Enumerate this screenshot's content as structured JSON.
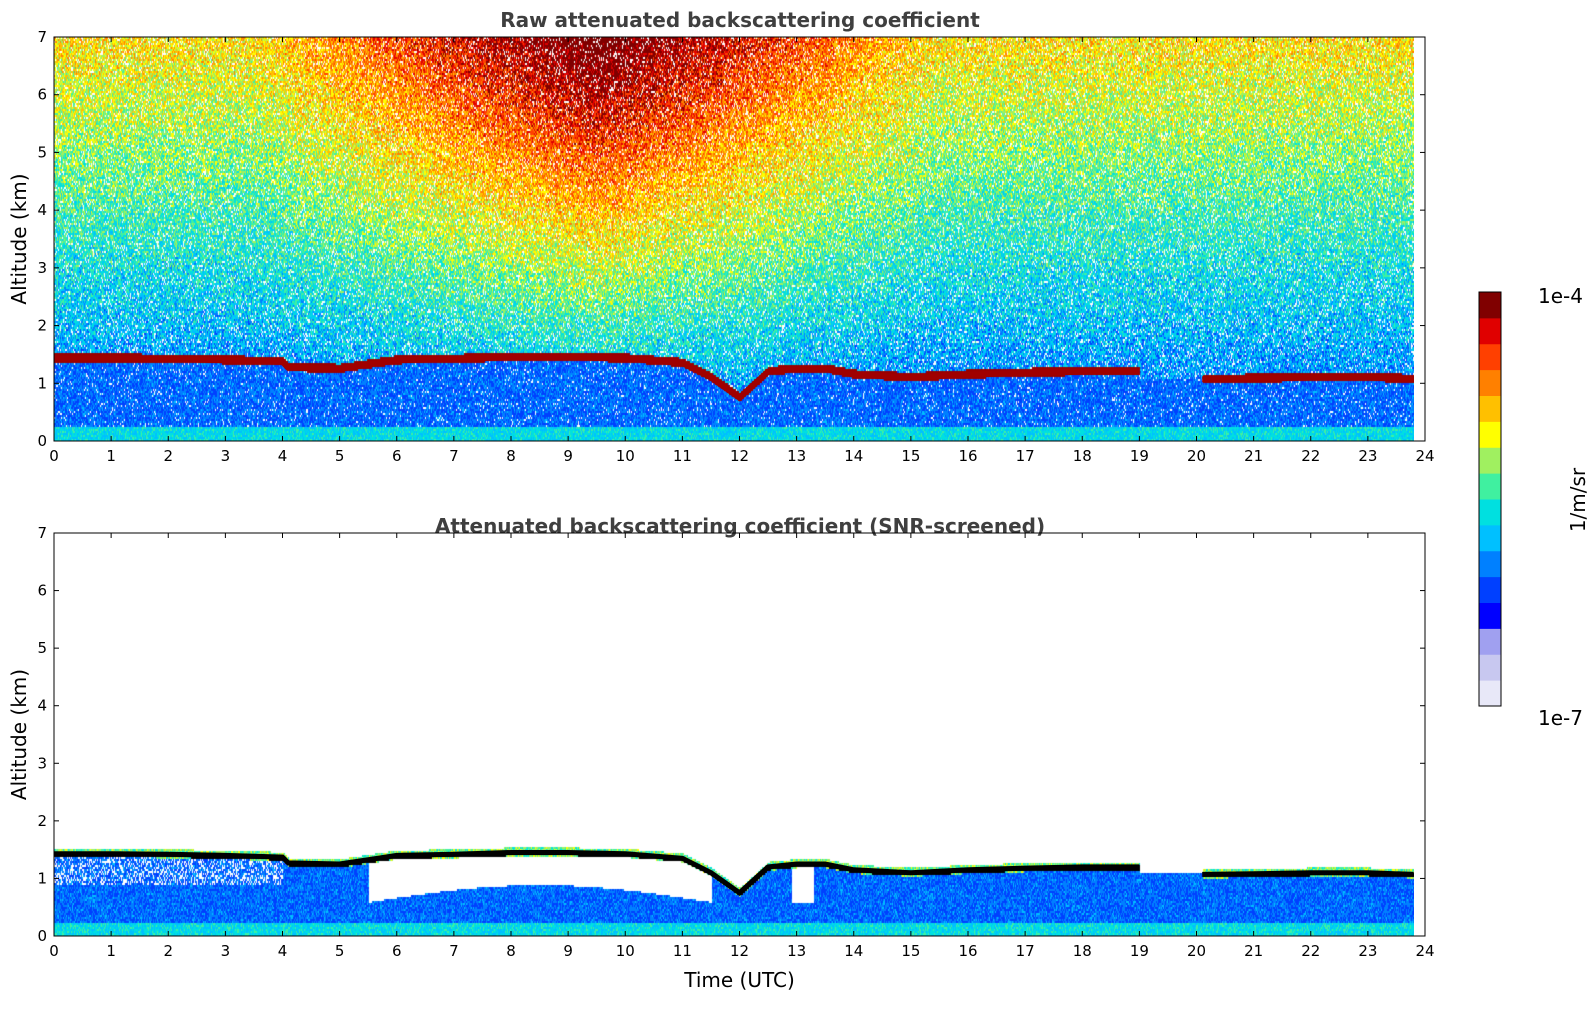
{
  "chart_data": [
    {
      "type": "heatmap",
      "title": "Raw attenuated backscattering coefficient",
      "xlabel": "",
      "ylabel": "Altitude (km)",
      "xlim": [
        0,
        24
      ],
      "ylim": [
        0,
        7
      ],
      "xticks": [
        0,
        1,
        2,
        3,
        4,
        5,
        6,
        7,
        8,
        9,
        10,
        11,
        12,
        13,
        14,
        15,
        16,
        17,
        18,
        19,
        20,
        21,
        22,
        23,
        24
      ],
      "yticks": [
        0,
        1,
        2,
        3,
        4,
        5,
        6,
        7
      ],
      "data_end_time": 23.8,
      "screened": false,
      "layer_altitude_km": [
        [
          0,
          1.43
        ],
        [
          1,
          1.43
        ],
        [
          2,
          1.42
        ],
        [
          3,
          1.4
        ],
        [
          4,
          1.37
        ],
        [
          4.1,
          1.27
        ],
        [
          5,
          1.25
        ],
        [
          6,
          1.4
        ],
        [
          7,
          1.42
        ],
        [
          8,
          1.45
        ],
        [
          9,
          1.45
        ],
        [
          10,
          1.43
        ],
        [
          11,
          1.35
        ],
        [
          11.5,
          1.1
        ],
        [
          12,
          0.75
        ],
        [
          12.5,
          1.2
        ],
        [
          13,
          1.25
        ],
        [
          13.5,
          1.25
        ],
        [
          14,
          1.15
        ],
        [
          15,
          1.1
        ],
        [
          16,
          1.15
        ],
        [
          17,
          1.18
        ],
        [
          18,
          1.2
        ],
        [
          19,
          1.2
        ],
        [
          19.2,
          null
        ],
        [
          20.1,
          1.07
        ],
        [
          21,
          1.08
        ],
        [
          22,
          1.1
        ],
        [
          23,
          1.1
        ],
        [
          23.8,
          1.07
        ]
      ]
    },
    {
      "type": "heatmap",
      "title": "Attenuated backscattering coefficient (SNR-screened)",
      "xlabel": "Time (UTC)",
      "ylabel": "Altitude (km)",
      "xlim": [
        0,
        24
      ],
      "ylim": [
        0,
        7
      ],
      "xticks": [
        0,
        1,
        2,
        3,
        4,
        5,
        6,
        7,
        8,
        9,
        10,
        11,
        12,
        13,
        14,
        15,
        16,
        17,
        18,
        19,
        20,
        21,
        22,
        23,
        24
      ],
      "yticks": [
        0,
        1,
        2,
        3,
        4,
        5,
        6,
        7
      ],
      "data_end_time": 23.8,
      "screened": true,
      "layer_altitude_km": [
        [
          0,
          1.43
        ],
        [
          1,
          1.43
        ],
        [
          2,
          1.42
        ],
        [
          3,
          1.4
        ],
        [
          4,
          1.37
        ],
        [
          4.1,
          1.27
        ],
        [
          5,
          1.25
        ],
        [
          6,
          1.4
        ],
        [
          7,
          1.42
        ],
        [
          8,
          1.45
        ],
        [
          9,
          1.45
        ],
        [
          10,
          1.43
        ],
        [
          11,
          1.35
        ],
        [
          11.5,
          1.1
        ],
        [
          12,
          0.75
        ],
        [
          12.5,
          1.2
        ],
        [
          13,
          1.25
        ],
        [
          13.5,
          1.25
        ],
        [
          14,
          1.15
        ],
        [
          15,
          1.1
        ],
        [
          16,
          1.15
        ],
        [
          17,
          1.18
        ],
        [
          18,
          1.2
        ],
        [
          19,
          1.2
        ],
        [
          19.2,
          null
        ],
        [
          20.1,
          1.07
        ],
        [
          21,
          1.08
        ],
        [
          22,
          1.1
        ],
        [
          23,
          1.1
        ],
        [
          23.8,
          1.07
        ]
      ]
    }
  ],
  "colorbar": {
    "label": "1/m/sr",
    "max_label": "1e-4",
    "min_label": "1e-7",
    "colormap": [
      "#e8e8f8",
      "#c8c8f0",
      "#a0a0f0",
      "#0000ff",
      "#0040ff",
      "#0080ff",
      "#00c0ff",
      "#00e0e0",
      "#40f0a0",
      "#a0f060",
      "#ffff00",
      "#ffc000",
      "#ff8000",
      "#ff4000",
      "#e00000",
      "#800000"
    ]
  }
}
